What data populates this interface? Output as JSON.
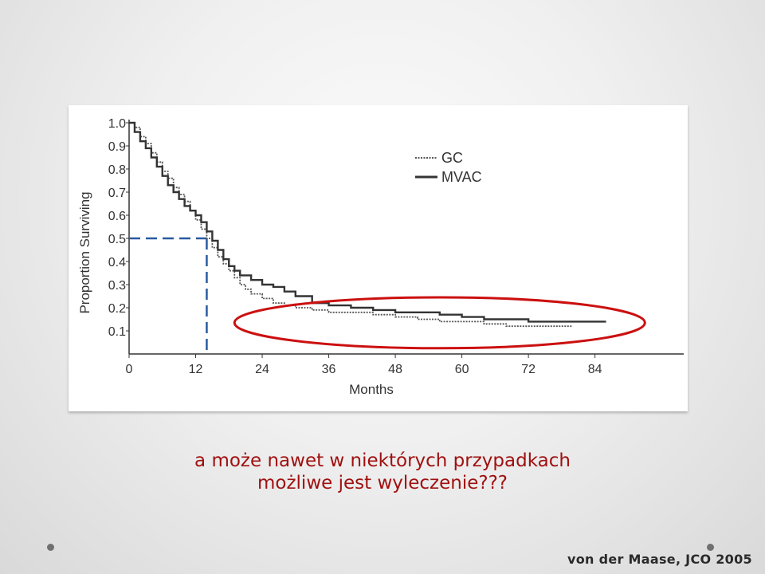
{
  "chart_data": {
    "type": "line",
    "ylabel": "Proportion Surviving",
    "xlabel": "Months",
    "x_ticks": [
      0,
      12,
      24,
      36,
      48,
      60,
      72,
      84
    ],
    "y_ticks": [
      0.1,
      0.2,
      0.3,
      0.4,
      0.5,
      0.6,
      0.7,
      0.8,
      0.9,
      1.0
    ],
    "y_tick_labels": [
      "0.1",
      "0.2",
      "0.3",
      "0.4",
      "0.5",
      "0.6",
      "0.7",
      "0.8",
      "0.9",
      "1.0"
    ],
    "xlim": [
      0,
      90
    ],
    "ylim": [
      0,
      1.0
    ],
    "legend_position": "top-right",
    "series": [
      {
        "name": "GC",
        "style": "dotted",
        "color": "#555555",
        "x": [
          0,
          1,
          2,
          3,
          4,
          5,
          6,
          7,
          8,
          9,
          10,
          11,
          12,
          13,
          14,
          15,
          16,
          17,
          18,
          19,
          20,
          21,
          22,
          24,
          26,
          28,
          30,
          33,
          36,
          40,
          44,
          48,
          52,
          56,
          60,
          64,
          68,
          72,
          76,
          80
        ],
        "y": [
          1.0,
          0.98,
          0.94,
          0.91,
          0.87,
          0.83,
          0.79,
          0.76,
          0.72,
          0.69,
          0.66,
          0.62,
          0.58,
          0.54,
          0.5,
          0.46,
          0.42,
          0.39,
          0.36,
          0.33,
          0.3,
          0.28,
          0.26,
          0.24,
          0.22,
          0.21,
          0.2,
          0.19,
          0.18,
          0.18,
          0.17,
          0.16,
          0.15,
          0.14,
          0.14,
          0.13,
          0.12,
          0.12,
          0.12,
          0.12
        ]
      },
      {
        "name": "MVAC",
        "style": "solid",
        "color": "#333333",
        "x": [
          0,
          1,
          2,
          3,
          4,
          5,
          6,
          7,
          8,
          9,
          10,
          11,
          12,
          13,
          14,
          15,
          16,
          17,
          18,
          19,
          20,
          22,
          24,
          26,
          28,
          30,
          33,
          36,
          40,
          44,
          48,
          52,
          56,
          60,
          64,
          68,
          72,
          76,
          80,
          86
        ],
        "y": [
          1.0,
          0.96,
          0.92,
          0.89,
          0.85,
          0.81,
          0.77,
          0.73,
          0.7,
          0.67,
          0.64,
          0.62,
          0.6,
          0.57,
          0.53,
          0.49,
          0.45,
          0.41,
          0.38,
          0.36,
          0.34,
          0.32,
          0.3,
          0.29,
          0.27,
          0.25,
          0.22,
          0.21,
          0.2,
          0.19,
          0.18,
          0.18,
          0.17,
          0.16,
          0.15,
          0.15,
          0.14,
          0.14,
          0.14,
          0.14
        ]
      }
    ],
    "median_marker": {
      "x": 14,
      "y": 0.5,
      "color": "#2a5aa0"
    },
    "highlight_ellipse": {
      "x_center": 56,
      "y_center": 0.135,
      "x_radius": 37,
      "y_radius": 0.11,
      "color": "#cc1010"
    }
  },
  "caption": {
    "line1": "a może nawet w niektórych przypadkach",
    "line2": "możliwe jest wyleczenie???"
  },
  "citation": "von der Maase, JCO 2005"
}
